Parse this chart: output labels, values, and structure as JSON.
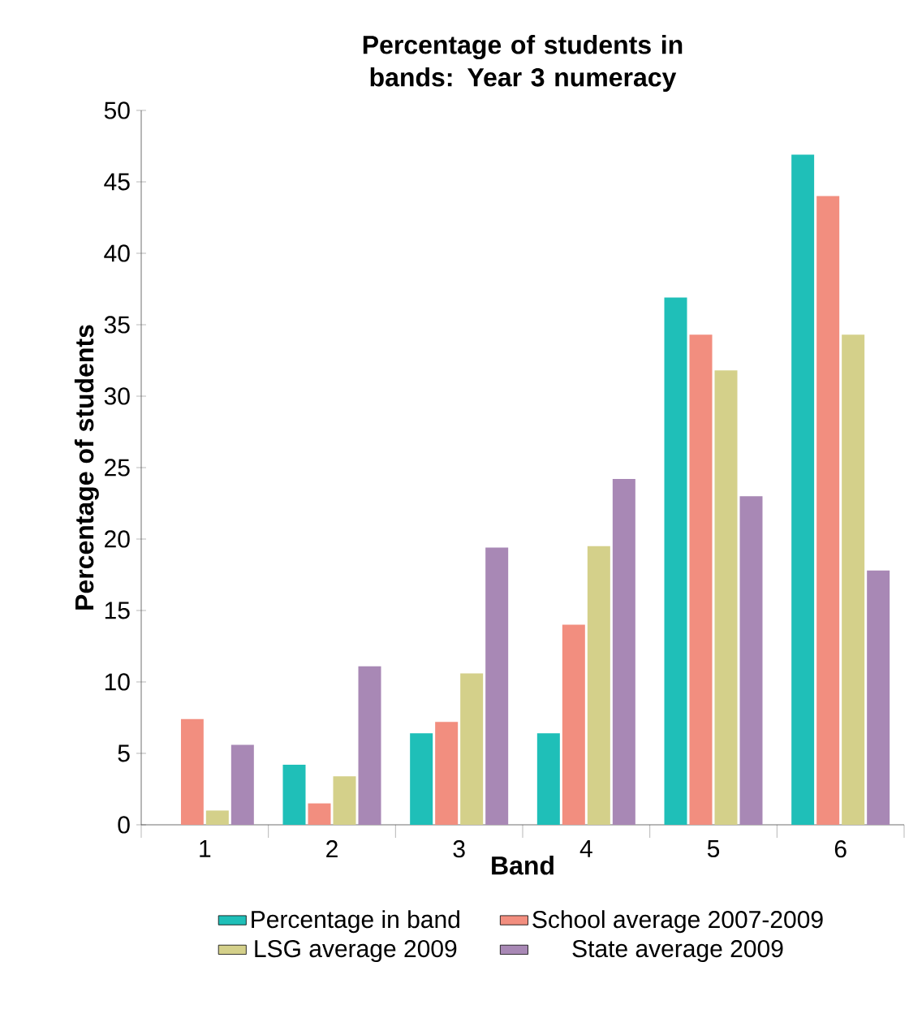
{
  "chart_data": {
    "type": "bar",
    "title": "Percentage of students in bands: Year 3 numeracy",
    "xlabel": "Band",
    "ylabel": "Percentage of students",
    "categories": [
      "1",
      "2",
      "3",
      "4",
      "5",
      "6"
    ],
    "series": [
      {
        "name": "Percentage in band",
        "color": "#1fbfb8",
        "values": [
          0,
          4.2,
          6.4,
          6.4,
          36.9,
          46.9
        ]
      },
      {
        "name": "School average 2007-2009",
        "color": "#f28e7f",
        "values": [
          7.4,
          1.5,
          7.2,
          14.0,
          34.3,
          44.0
        ]
      },
      {
        "name": "LSG average 2009",
        "color": "#d4d08a",
        "values": [
          1.0,
          3.4,
          10.6,
          19.5,
          31.8,
          34.3
        ]
      },
      {
        "name": "State average 2009",
        "color": "#a888b5",
        "values": [
          5.6,
          11.1,
          19.4,
          24.2,
          23.0,
          17.8
        ]
      }
    ],
    "ylim": [
      0,
      50
    ],
    "yticks": [
      0,
      5,
      10,
      15,
      20,
      25,
      30,
      35,
      40,
      45,
      50
    ],
    "legend": "bottom"
  }
}
